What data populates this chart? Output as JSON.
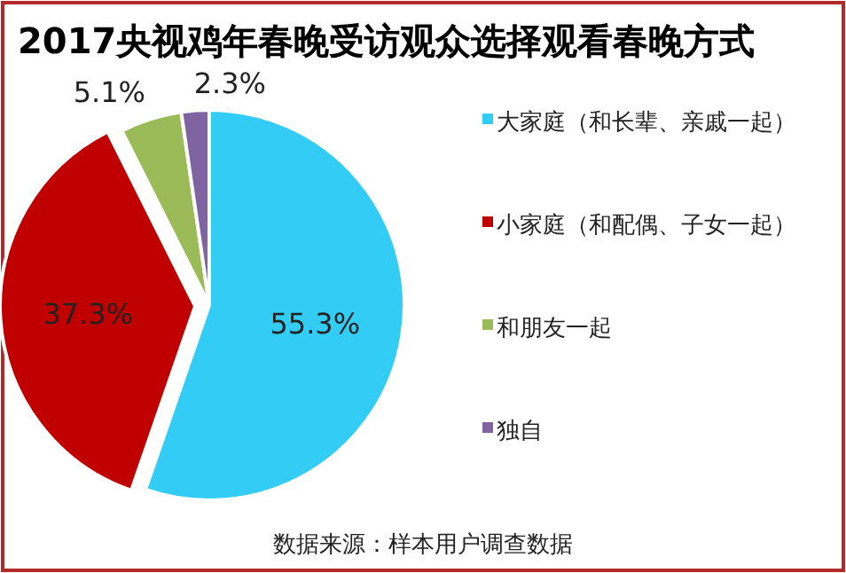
{
  "chart_data": {
    "type": "pie",
    "title": "2017央视鸡年春晚受访观众选择观看春晚方式",
    "categories": [
      "大家庭（和长辈、亲戚一起）",
      "小家庭（和配偶、子女一起）",
      "和朋友一起",
      "独自"
    ],
    "values": [
      55.3,
      37.3,
      5.1,
      2.3
    ],
    "colors": [
      "#33ccf5",
      "#c00000",
      "#9bbb59",
      "#8064a2"
    ],
    "value_labels": [
      "55.3%",
      "37.3%",
      "5.1%",
      "2.3%"
    ],
    "legend": "right",
    "annotations": [
      "数据来源：样本用户调查数据"
    ]
  }
}
